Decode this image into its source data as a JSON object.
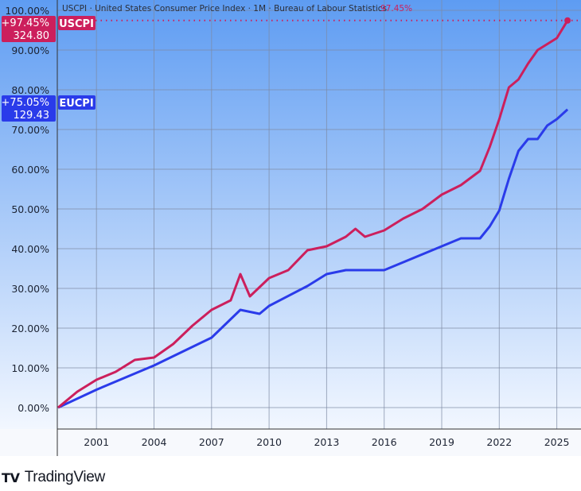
{
  "chart_data": {
    "type": "line",
    "title": "USCPI · United States Consumer Price Index · 1M · Bureau of Labour Statistics",
    "title_value": "97.45%",
    "xlabel": "",
    "ylabel": "",
    "x_ticks": [
      "2001",
      "2004",
      "2007",
      "2010",
      "2013",
      "2016",
      "2019",
      "2022",
      "2025"
    ],
    "y_ticks": [
      "0.00%",
      "10.00%",
      "20.00%",
      "30.00%",
      "40.00%",
      "50.00%",
      "60.00%",
      "70.00%",
      "80.00%",
      "90.00%",
      "100.00%"
    ],
    "xlim": [
      1999.0,
      2026.3
    ],
    "ylim": [
      -5,
      102
    ],
    "grid": true,
    "series": [
      {
        "name": "USCPI",
        "color": "#cc1f5c",
        "label_pct": "+97.45%",
        "label_value": "324.80",
        "x": [
          1999,
          2000,
          2001,
          2002,
          2003,
          2004,
          2005,
          2006,
          2007,
          2008,
          2008.5,
          2009,
          2010,
          2011,
          2012,
          2013,
          2014,
          2014.5,
          2015,
          2016,
          2017,
          2018,
          2019,
          2020,
          2021,
          2021.5,
          2022,
          2022.5,
          2023,
          2023.5,
          2024,
          2025,
          2025.56
        ],
        "y": [
          0,
          4,
          7,
          9,
          12,
          12.6,
          16,
          20.6,
          24.6,
          27,
          33.6,
          28,
          32.6,
          34.6,
          39.6,
          40.6,
          43,
          45,
          43,
          44.6,
          47.6,
          50,
          53.6,
          56,
          59.6,
          65.6,
          72.6,
          80.6,
          82.6,
          86.6,
          90,
          93,
          97.45
        ]
      },
      {
        "name": "EUCPI",
        "color": "#2a3bea",
        "label_pct": "+75.05%",
        "label_value": "129.43",
        "x": [
          1999,
          2001,
          2004,
          2007,
          2008.5,
          2009.5,
          2010,
          2012,
          2013,
          2014,
          2016,
          2017,
          2019,
          2020,
          2021,
          2021.5,
          2022,
          2022.5,
          2023,
          2023.5,
          2024,
          2024.5,
          2025,
          2025.56
        ],
        "y": [
          0,
          4.5,
          10.6,
          17.6,
          24.6,
          23.6,
          25.6,
          30.6,
          33.6,
          34.6,
          34.6,
          36.6,
          40.6,
          42.6,
          42.6,
          45.6,
          49.6,
          57.6,
          64.6,
          67.6,
          67.6,
          71,
          72.6,
          75.05
        ]
      }
    ]
  },
  "footer": {
    "logo_text": "TradingView",
    "logo_mark": "17"
  }
}
